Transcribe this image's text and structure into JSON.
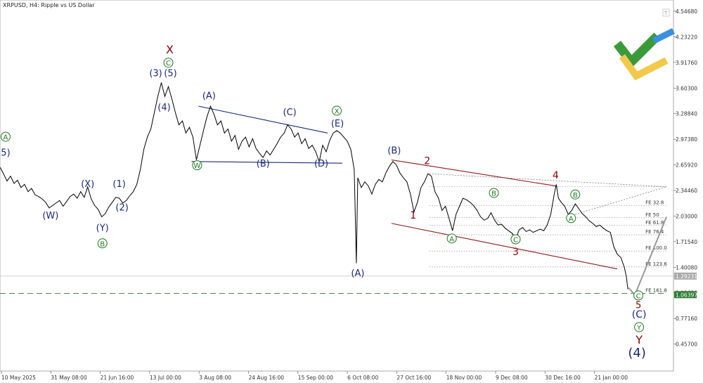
{
  "header": {
    "title": "XRPUSD, H4:  Ripple vs US Dollar"
  },
  "colors": {
    "price": "#000000",
    "blue_wave": "#1a2a7a",
    "green_wave": "#1e7a1e",
    "red_wave": "#8b0000",
    "channel_red": "#8b1a1a",
    "channel_blue": "#1a2a7a",
    "support_line": "#2e7d32",
    "logo_green": "#3a9a3a",
    "logo_yellow": "#f2c94c",
    "logo_blue": "#3b8fe0"
  },
  "icons": {
    "logo": "brand-logo-icon"
  },
  "chart_data": {
    "type": "line",
    "symbol": "XRPUSD",
    "timeframe": "H4",
    "y_ticks": [
      "4.54680",
      "4.23220",
      "3.91760",
      "3.60300",
      "3.28840",
      "2.97380",
      "2.65920",
      "2.34460",
      "2.03000",
      "1.71540",
      "1.40080",
      "1.08620",
      "0.77160",
      "0.45700"
    ],
    "x_ticks": [
      "10 May 2025",
      "31 May 08:00",
      "21 Jun 16:00",
      "13 Jul 00:00",
      "3 Aug 08:00",
      "24 Aug 16:00",
      "15 Sep 00:00",
      "6 Oct 08:00",
      "27 Oct 16:00",
      "18 Nov 00:00",
      "9 Dec 08:00",
      "30 Dec 16:00",
      "21 Jan 00:00"
    ],
    "ylim": [
      0.35,
      4.6
    ],
    "xlim": [
      0,
      960
    ],
    "price_labels": [
      {
        "value": 1.29231,
        "text": "1.29231"
      },
      {
        "value": 1.06397,
        "text": "1.06397"
      }
    ],
    "fib_levels": [
      {
        "label": "",
        "value": 2.39
      },
      {
        "label": "FE 32.8",
        "value": 2.16
      },
      {
        "label": "FE 50",
        "value": 2.01
      },
      {
        "label": "FE 61.8",
        "value": 1.915
      },
      {
        "label": "FE 76.4",
        "value": 1.8
      },
      {
        "label": "FE 100.0",
        "value": 1.6
      },
      {
        "label": "FE 123.6",
        "value": 1.405
      },
      {
        "label": "FE 161.8",
        "value": 1.08
      }
    ],
    "price_series": [
      [
        0,
        2.63
      ],
      [
        5,
        2.55
      ],
      [
        10,
        2.46
      ],
      [
        15,
        2.52
      ],
      [
        20,
        2.43
      ],
      [
        25,
        2.47
      ],
      [
        30,
        2.38
      ],
      [
        35,
        2.42
      ],
      [
        40,
        2.33
      ],
      [
        45,
        2.37
      ],
      [
        50,
        2.29
      ],
      [
        55,
        2.27
      ],
      [
        60,
        2.24
      ],
      [
        65,
        2.2
      ],
      [
        70,
        2.13
      ],
      [
        75,
        2.16
      ],
      [
        80,
        2.19
      ],
      [
        85,
        2.22
      ],
      [
        90,
        2.15
      ],
      [
        95,
        2.21
      ],
      [
        100,
        2.27
      ],
      [
        105,
        2.3
      ],
      [
        110,
        2.25
      ],
      [
        115,
        2.33
      ],
      [
        120,
        2.26
      ],
      [
        125,
        2.39
      ],
      [
        130,
        2.24
      ],
      [
        135,
        2.16
      ],
      [
        140,
        2.11
      ],
      [
        145,
        2.02
      ],
      [
        150,
        2.06
      ],
      [
        155,
        2.14
      ],
      [
        160,
        2.2
      ],
      [
        165,
        2.26
      ],
      [
        170,
        2.25
      ],
      [
        175,
        2.19
      ],
      [
        180,
        2.22
      ],
      [
        185,
        2.28
      ],
      [
        190,
        2.33
      ],
      [
        195,
        2.42
      ],
      [
        200,
        2.6
      ],
      [
        205,
        2.85
      ],
      [
        210,
        3.0
      ],
      [
        215,
        3.1
      ],
      [
        220,
        3.3
      ],
      [
        225,
        3.5
      ],
      [
        230,
        3.67
      ],
      [
        235,
        3.5
      ],
      [
        240,
        3.62
      ],
      [
        245,
        3.47
      ],
      [
        250,
        3.3
      ],
      [
        255,
        3.15
      ],
      [
        260,
        3.2
      ],
      [
        265,
        3.05
      ],
      [
        270,
        3.12
      ],
      [
        275,
        3.0
      ],
      [
        280,
        2.72
      ],
      [
        285,
        2.9
      ],
      [
        290,
        3.08
      ],
      [
        295,
        3.25
      ],
      [
        300,
        3.38
      ],
      [
        305,
        3.28
      ],
      [
        310,
        3.15
      ],
      [
        315,
        3.2
      ],
      [
        320,
        3.05
      ],
      [
        325,
        3.1
      ],
      [
        330,
        2.95
      ],
      [
        335,
        3.02
      ],
      [
        340,
        2.85
      ],
      [
        345,
        2.95
      ],
      [
        350,
        3.0
      ],
      [
        355,
        2.88
      ],
      [
        360,
        2.98
      ],
      [
        365,
        2.86
      ],
      [
        370,
        2.8
      ],
      [
        375,
        2.75
      ],
      [
        380,
        2.83
      ],
      [
        385,
        2.78
      ],
      [
        390,
        2.85
      ],
      [
        395,
        2.92
      ],
      [
        400,
        3.0
      ],
      [
        405,
        3.05
      ],
      [
        410,
        3.15
      ],
      [
        415,
        3.1
      ],
      [
        420,
        3.0
      ],
      [
        425,
        3.05
      ],
      [
        430,
        2.92
      ],
      [
        435,
        2.98
      ],
      [
        440,
        2.86
      ],
      [
        445,
        2.9
      ],
      [
        450,
        2.82
      ],
      [
        455,
        2.7
      ],
      [
        460,
        2.9
      ],
      [
        465,
        2.82
      ],
      [
        470,
        2.96
      ],
      [
        475,
        3.05
      ],
      [
        480,
        3.08
      ],
      [
        485,
        3.05
      ],
      [
        490,
        3.0
      ],
      [
        495,
        2.95
      ],
      [
        500,
        2.85
      ],
      [
        505,
        2.6
      ],
      [
        508,
        1.45
      ],
      [
        510,
        2.5
      ],
      [
        515,
        2.38
      ],
      [
        520,
        2.45
      ],
      [
        525,
        2.4
      ],
      [
        530,
        2.3
      ],
      [
        535,
        2.42
      ],
      [
        540,
        2.48
      ],
      [
        545,
        2.45
      ],
      [
        550,
        2.56
      ],
      [
        555,
        2.64
      ],
      [
        560,
        2.7
      ],
      [
        565,
        2.66
      ],
      [
        570,
        2.56
      ],
      [
        575,
        2.5
      ],
      [
        580,
        2.45
      ],
      [
        585,
        2.3
      ],
      [
        590,
        2.08
      ],
      [
        595,
        2.2
      ],
      [
        600,
        2.38
      ],
      [
        605,
        2.45
      ],
      [
        610,
        2.55
      ],
      [
        615,
        2.52
      ],
      [
        620,
        2.33
      ],
      [
        625,
        2.25
      ],
      [
        630,
        2.1
      ],
      [
        635,
        2.15
      ],
      [
        640,
        2.0
      ],
      [
        645,
        1.85
      ],
      [
        650,
        2.05
      ],
      [
        655,
        2.15
      ],
      [
        660,
        2.25
      ],
      [
        665,
        2.23
      ],
      [
        670,
        2.2
      ],
      [
        675,
        2.16
      ],
      [
        680,
        2.1
      ],
      [
        685,
        2.02
      ],
      [
        690,
        1.98
      ],
      [
        695,
        2.0
      ],
      [
        700,
        2.07
      ],
      [
        705,
        1.98
      ],
      [
        710,
        1.92
      ],
      [
        715,
        1.93
      ],
      [
        720,
        1.88
      ],
      [
        725,
        1.85
      ],
      [
        730,
        1.82
      ],
      [
        735,
        1.75
      ],
      [
        740,
        1.86
      ],
      [
        745,
        1.89
      ],
      [
        750,
        1.84
      ],
      [
        755,
        1.86
      ],
      [
        760,
        1.83
      ],
      [
        765,
        1.85
      ],
      [
        770,
        1.87
      ],
      [
        775,
        1.85
      ],
      [
        780,
        1.92
      ],
      [
        785,
        2.05
      ],
      [
        790,
        2.3
      ],
      [
        793,
        2.42
      ],
      [
        796,
        2.25
      ],
      [
        800,
        2.2
      ],
      [
        805,
        2.15
      ],
      [
        810,
        2.05
      ],
      [
        815,
        2.1
      ],
      [
        820,
        2.18
      ],
      [
        825,
        2.12
      ],
      [
        830,
        2.06
      ],
      [
        835,
        2.02
      ],
      [
        840,
        1.97
      ],
      [
        845,
        1.94
      ],
      [
        850,
        1.9
      ],
      [
        855,
        1.92
      ],
      [
        860,
        1.88
      ],
      [
        865,
        1.85
      ],
      [
        870,
        1.83
      ],
      [
        875,
        1.65
      ],
      [
        880,
        1.56
      ],
      [
        885,
        1.52
      ],
      [
        890,
        1.4
      ],
      [
        893,
        1.28
      ],
      [
        895,
        1.13
      ]
    ]
  },
  "wave_labels": [
    {
      "text": "A",
      "x": 8,
      "y": 2.97,
      "color": "green",
      "circle": true,
      "size": 10
    },
    {
      "text": "5)",
      "x": 8,
      "y": 2.77,
      "color": "blue",
      "size": 13
    },
    {
      "text": "(W)",
      "x": 72,
      "y": 2.0,
      "color": "blue",
      "size": 13
    },
    {
      "text": "(X)",
      "x": 125,
      "y": 2.39,
      "color": "blue",
      "size": 13
    },
    {
      "text": "(1)",
      "x": 170,
      "y": 2.39,
      "color": "blue",
      "size": 13
    },
    {
      "text": "(2)",
      "x": 174,
      "y": 2.1,
      "color": "blue",
      "size": 13
    },
    {
      "text": "(Y)",
      "x": 146,
      "y": 1.85,
      "color": "blue",
      "size": 13
    },
    {
      "text": "B",
      "x": 146,
      "y": 1.66,
      "color": "green",
      "circle": true,
      "size": 10
    },
    {
      "text": "(3)",
      "x": 222,
      "y": 3.75,
      "color": "blue",
      "size": 13
    },
    {
      "text": "(5)",
      "x": 243,
      "y": 3.75,
      "color": "blue",
      "size": 13
    },
    {
      "text": "(4)",
      "x": 234,
      "y": 3.33,
      "color": "blue",
      "size": 13
    },
    {
      "text": "C",
      "x": 240,
      "y": 3.88,
      "color": "green",
      "circle": true,
      "size": 10
    },
    {
      "text": "X",
      "x": 242,
      "y": 4.03,
      "color": "red",
      "size": 16
    },
    {
      "text": "W",
      "x": 281,
      "y": 2.62,
      "color": "green",
      "circle": true,
      "size": 10
    },
    {
      "text": "(A)",
      "x": 298,
      "y": 3.47,
      "color": "blue",
      "size": 13
    },
    {
      "text": "(B)",
      "x": 375,
      "y": 2.64,
      "color": "blue",
      "size": 13
    },
    {
      "text": "(C)",
      "x": 413,
      "y": 3.27,
      "color": "blue",
      "size": 13
    },
    {
      "text": "(D)",
      "x": 458,
      "y": 2.64,
      "color": "blue",
      "size": 13
    },
    {
      "text": "X",
      "x": 480,
      "y": 3.29,
      "color": "green",
      "circle": true,
      "size": 10
    },
    {
      "text": "(E)",
      "x": 481,
      "y": 3.13,
      "color": "blue",
      "size": 13
    },
    {
      "text": "(A)",
      "x": 510,
      "y": 1.29,
      "color": "blue",
      "size": 13
    },
    {
      "text": "(B)",
      "x": 562,
      "y": 2.8,
      "color": "blue",
      "size": 13
    },
    {
      "text": "2",
      "x": 609,
      "y": 2.67,
      "color": "red",
      "size": 14
    },
    {
      "text": "1",
      "x": 589,
      "y": 2.0,
      "color": "red",
      "size": 14
    },
    {
      "text": "B",
      "x": 704,
      "y": 2.28,
      "color": "green",
      "circle": true,
      "size": 10
    },
    {
      "text": "A",
      "x": 644,
      "y": 1.72,
      "color": "green",
      "circle": true,
      "size": 10
    },
    {
      "text": "C",
      "x": 735,
      "y": 1.71,
      "color": "green",
      "circle": true,
      "size": 10
    },
    {
      "text": "3",
      "x": 735,
      "y": 1.55,
      "color": "red",
      "size": 14
    },
    {
      "text": "4",
      "x": 792,
      "y": 2.49,
      "color": "red",
      "size": 14
    },
    {
      "text": "B",
      "x": 820,
      "y": 2.26,
      "color": "green",
      "circle": true,
      "size": 10
    },
    {
      "text": "A",
      "x": 814,
      "y": 1.97,
      "color": "green",
      "circle": true,
      "size": 10
    },
    {
      "text": "C",
      "x": 910,
      "y": 1.02,
      "color": "green",
      "circle": true,
      "size": 10
    },
    {
      "text": "5",
      "x": 910,
      "y": 0.9,
      "color": "red",
      "size": 13
    },
    {
      "text": "(C)",
      "x": 911,
      "y": 0.78,
      "color": "blue",
      "size": 14
    },
    {
      "text": "Y",
      "x": 911,
      "y": 0.63,
      "color": "green",
      "circle": true,
      "size": 10
    },
    {
      "text": "Y",
      "x": 911,
      "y": 0.46,
      "color": "red",
      "size": 16
    },
    {
      "text": "(4)",
      "x": 908,
      "y": 0.3,
      "color": "blue",
      "size": 18
    }
  ],
  "trend_lines": [
    {
      "x1": 283,
      "y1": 3.38,
      "x2": 467,
      "y2": 3.05,
      "color": "channel_blue"
    },
    {
      "x1": 273,
      "y1": 2.7,
      "x2": 488,
      "y2": 2.68,
      "color": "channel_blue"
    },
    {
      "x1": 558,
      "y1": 2.72,
      "x2": 792,
      "y2": 2.4,
      "color": "channel_red"
    },
    {
      "x1": 558,
      "y1": 1.94,
      "x2": 880,
      "y2": 1.38,
      "color": "channel_red"
    }
  ],
  "forecast_path": [
    [
      896,
      1.15
    ],
    [
      905,
      1.06
    ],
    [
      950,
      2.02
    ]
  ],
  "dotted_lines": [
    {
      "x1": 612,
      "y1": 2.55,
      "x2": 950,
      "y2": 2.39
    },
    {
      "x1": 706,
      "y1": 2.0,
      "x2": 736,
      "y2": 1.76
    },
    {
      "x1": 820,
      "y1": 2.05,
      "x2": 950,
      "y2": 2.39
    }
  ]
}
